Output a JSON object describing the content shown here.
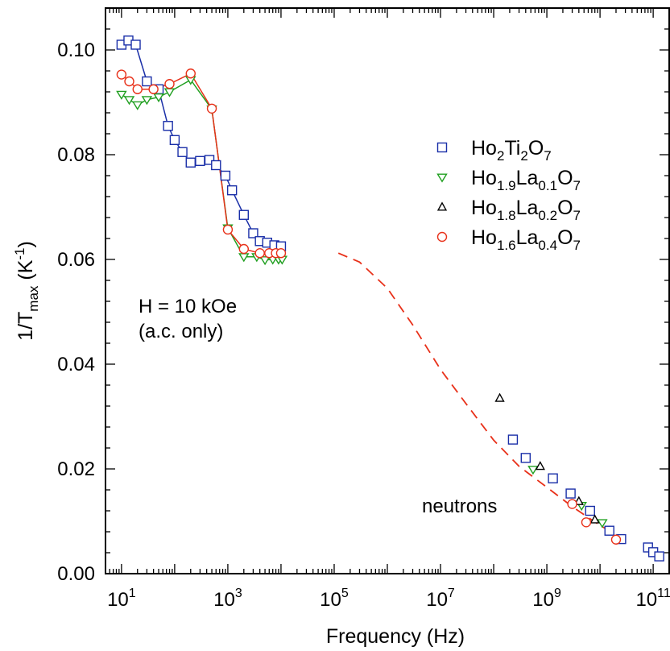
{
  "chart_data": {
    "type": "scatter",
    "xlabel": "Frequency (Hz)",
    "ylabel": {
      "base": "1/T",
      "sub": "max",
      "unit_open": " (K",
      "unit_sup": "-1",
      "unit_close": ")"
    },
    "x_scale": "log",
    "x_range": [
      5,
      200000000000
    ],
    "y_range": [
      0,
      0.108
    ],
    "x_ticks": [
      {
        "value": 10,
        "base": "10",
        "exp": "1"
      },
      {
        "value": 1000,
        "base": "10",
        "exp": "3"
      },
      {
        "value": 100000,
        "base": "10",
        "exp": "5"
      },
      {
        "value": 10000000,
        "base": "10",
        "exp": "7"
      },
      {
        "value": 1000000000,
        "base": "10",
        "exp": "9"
      },
      {
        "value": 100000000000,
        "base": "10",
        "exp": "11"
      }
    ],
    "y_ticks": [
      {
        "value": 0,
        "label": "0.00"
      },
      {
        "value": 0.02,
        "label": "0.02"
      },
      {
        "value": 0.04,
        "label": "0.04"
      },
      {
        "value": 0.06,
        "label": "0.06"
      },
      {
        "value": 0.08,
        "label": "0.08"
      },
      {
        "value": 0.1,
        "label": "0.10"
      }
    ],
    "annotations": {
      "field_line1": "H = 10 kOe",
      "field_line2": "(a.c. only)",
      "neutrons": "neutrons"
    },
    "fit_curve": {
      "style": "dashed",
      "color": "#e8311a",
      "points": [
        [
          120000,
          0.0612
        ],
        [
          300000,
          0.0595
        ],
        [
          1000000,
          0.0545
        ],
        [
          3000000,
          0.0475
        ],
        [
          10000000,
          0.039
        ],
        [
          30000000,
          0.0325
        ],
        [
          100000000,
          0.0255
        ],
        [
          300000000,
          0.0205
        ],
        [
          1000000000,
          0.0165
        ],
        [
          3000000000,
          0.0128
        ],
        [
          10000000000,
          0.0092
        ],
        [
          30000000000,
          0.0065
        ]
      ]
    },
    "series": [
      {
        "name_parts": [
          [
            "Ho",
            ""
          ],
          [
            "2",
            "sub"
          ],
          [
            "Ti",
            ""
          ],
          [
            "2",
            "sub"
          ],
          [
            "O",
            ""
          ],
          [
            "7",
            "sub"
          ]
        ],
        "marker": "square",
        "color": "#1a2fa8",
        "connected": true,
        "points": [
          [
            10,
            0.101
          ],
          [
            13.5,
            0.1018
          ],
          [
            18.5,
            0.101
          ],
          [
            30,
            0.094
          ],
          [
            50,
            0.0925
          ],
          [
            75,
            0.0855
          ],
          [
            100,
            0.0828
          ],
          [
            140,
            0.0805
          ],
          [
            200,
            0.0785
          ],
          [
            300,
            0.0788
          ],
          [
            450,
            0.079
          ],
          [
            600,
            0.078
          ],
          [
            900,
            0.076
          ],
          [
            1200,
            0.0732
          ],
          [
            2000,
            0.0685
          ],
          [
            3000,
            0.065
          ],
          [
            4000,
            0.0635
          ],
          [
            5500,
            0.0632
          ],
          [
            7500,
            0.0627
          ],
          [
            10000,
            0.0625
          ],
          [
            230000000,
            0.0256
          ],
          [
            400000000,
            0.0221
          ],
          [
            1300000000,
            0.0182
          ],
          [
            2800000000,
            0.0153
          ],
          [
            6500000000,
            0.012
          ],
          [
            15000000000,
            0.0082
          ],
          [
            25000000000,
            0.0066
          ],
          [
            80000000000,
            0.005
          ],
          [
            100000000000,
            0.0041
          ],
          [
            130000000000,
            0.0033
          ]
        ]
      },
      {
        "name_parts": [
          [
            "Ho",
            ""
          ],
          [
            "1.9",
            "sub"
          ],
          [
            "La",
            ""
          ],
          [
            "0.1",
            "sub"
          ],
          [
            "O",
            ""
          ],
          [
            "7",
            "sub"
          ]
        ],
        "marker": "triangle-down",
        "color": "#22a022",
        "connected": true,
        "points": [
          [
            10,
            0.0915
          ],
          [
            14,
            0.0905
          ],
          [
            20,
            0.0895
          ],
          [
            30,
            0.0905
          ],
          [
            50,
            0.091
          ],
          [
            80,
            0.092
          ],
          [
            200,
            0.0943
          ],
          [
            500,
            0.0887
          ],
          [
            1000,
            0.066
          ],
          [
            2000,
            0.0605
          ],
          [
            3500,
            0.0605
          ],
          [
            5000,
            0.0599
          ],
          [
            7000,
            0.06
          ],
          [
            9000,
            0.06
          ],
          [
            10500,
            0.06
          ],
          [
            550000000,
            0.0199
          ],
          [
            4500000000,
            0.013
          ],
          [
            11000000000,
            0.0097
          ]
        ]
      },
      {
        "name_parts": [
          [
            "Ho",
            ""
          ],
          [
            "1.8",
            "sub"
          ],
          [
            "La",
            ""
          ],
          [
            "0.2",
            "sub"
          ],
          [
            "O",
            ""
          ],
          [
            "7",
            "sub"
          ]
        ],
        "marker": "triangle-up",
        "color": "#000000",
        "connected": false,
        "points": [
          [
            130000000,
            0.0335
          ],
          [
            750000000,
            0.0205
          ],
          [
            4000000000,
            0.0138
          ],
          [
            8000000000,
            0.0103
          ]
        ]
      },
      {
        "name_parts": [
          [
            "Ho",
            ""
          ],
          [
            "1.6",
            "sub"
          ],
          [
            "La",
            ""
          ],
          [
            "0.4",
            "sub"
          ],
          [
            "O",
            ""
          ],
          [
            "7",
            "sub"
          ]
        ],
        "marker": "circle",
        "color": "#e8311a",
        "connected": true,
        "points": [
          [
            10,
            0.0953
          ],
          [
            14,
            0.094
          ],
          [
            20,
            0.0925
          ],
          [
            40,
            0.0925
          ],
          [
            80,
            0.0935
          ],
          [
            200,
            0.0955
          ],
          [
            500,
            0.0888
          ],
          [
            1000,
            0.0657
          ],
          [
            2000,
            0.062
          ],
          [
            4000,
            0.0612
          ],
          [
            6000,
            0.0612
          ],
          [
            8000,
            0.0612
          ],
          [
            10000,
            0.0612
          ],
          [
            3000000000,
            0.0133
          ],
          [
            5500000000,
            0.0098
          ],
          [
            20000000000,
            0.0065
          ]
        ]
      }
    ]
  }
}
